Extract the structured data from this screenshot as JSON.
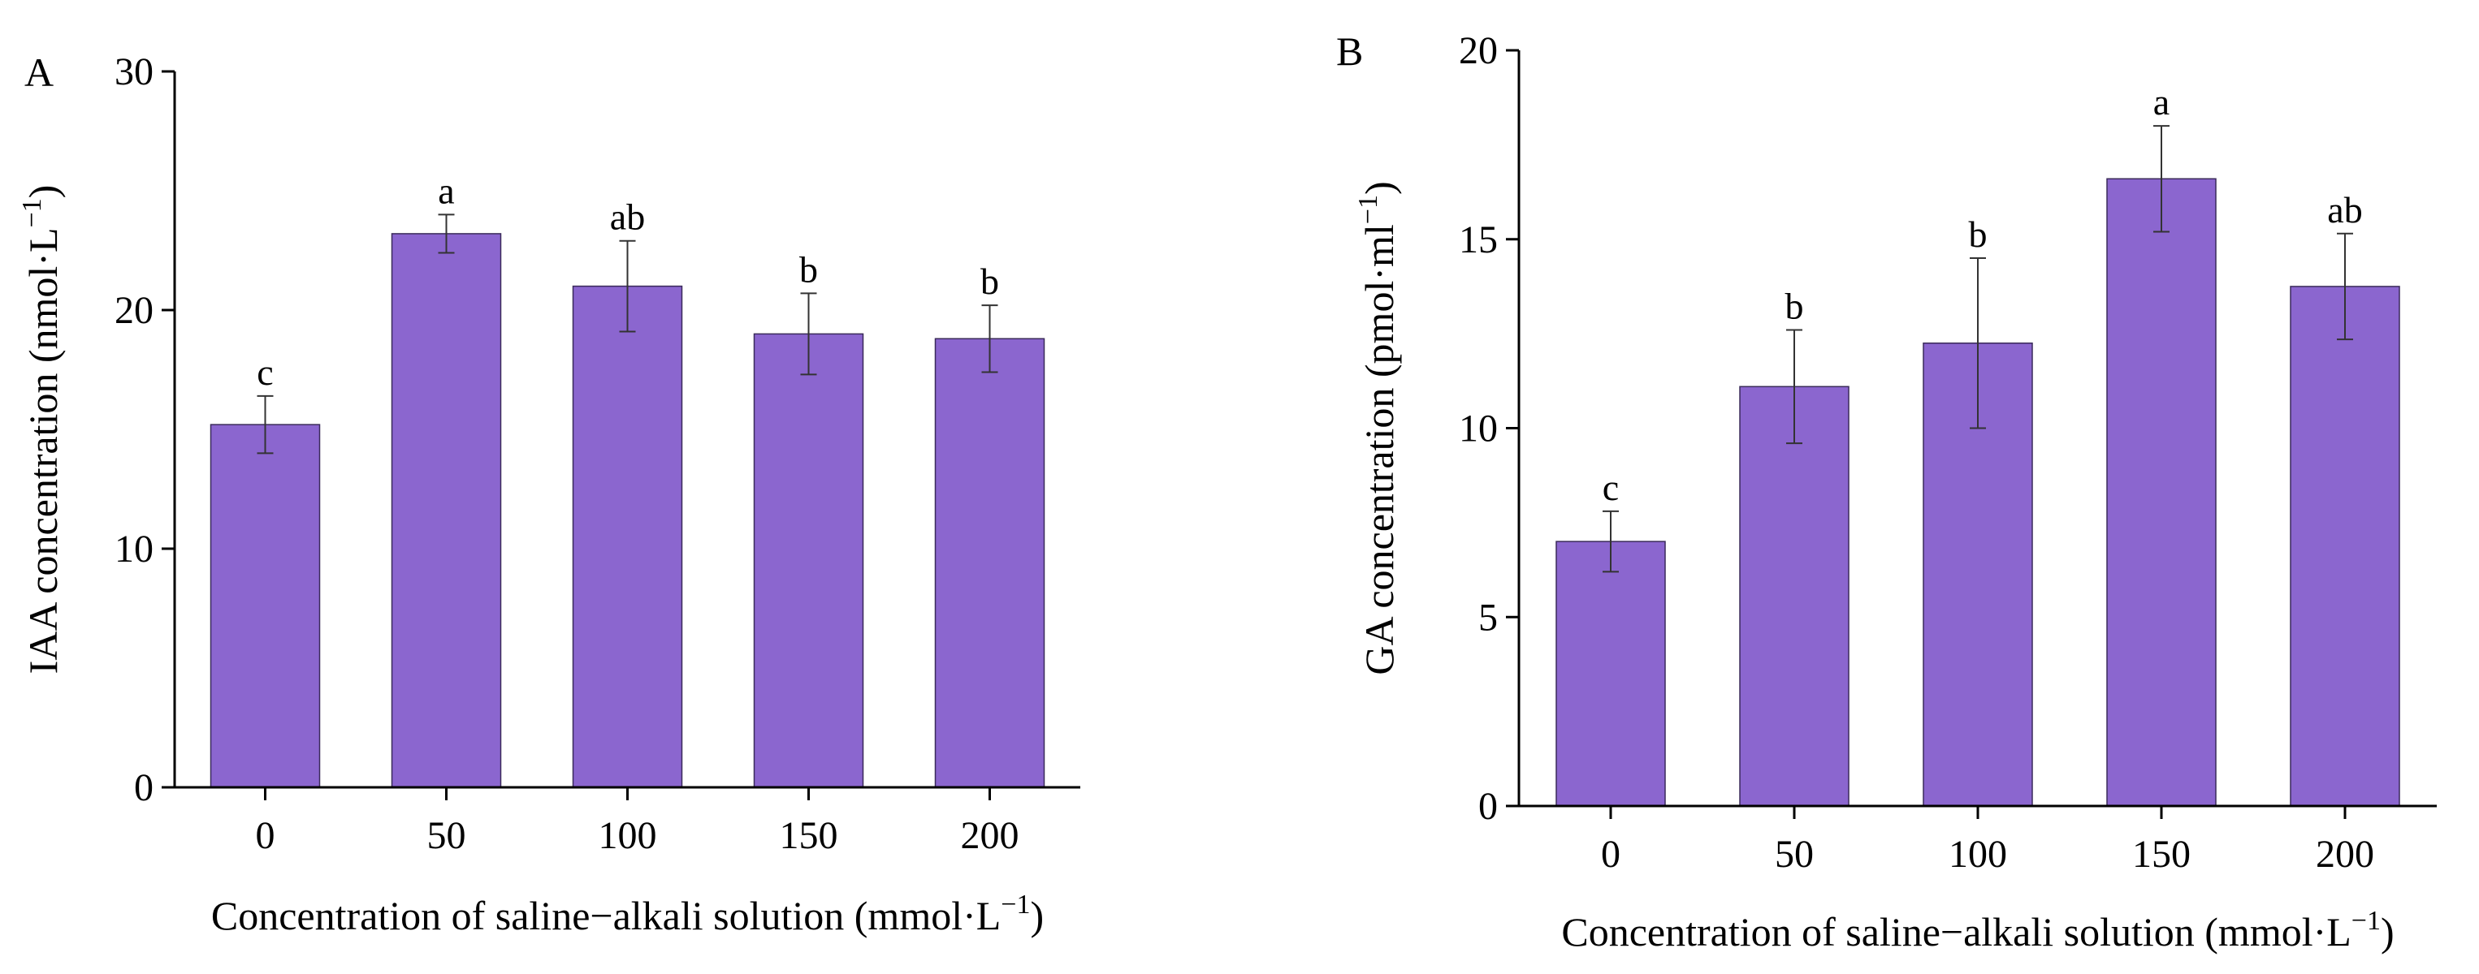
{
  "chart_data": [
    {
      "type": "bar",
      "panel": "A",
      "title": "",
      "categories": [
        "0",
        "50",
        "100",
        "150",
        "200"
      ],
      "values": [
        15.2,
        23.2,
        21.0,
        19.0,
        18.8
      ],
      "errors": [
        1.2,
        0.8,
        1.9,
        1.7,
        1.4
      ],
      "significance": [
        "c",
        "a",
        "ab",
        "b",
        "b"
      ],
      "xlabel": "Concentration of saline−alkali solution (mmol·L",
      "xlabel_sup": "−1",
      "xlabel_end": ")",
      "ylabel": "IAA concentration (nmol·L",
      "ylabel_sup": "−1",
      "ylabel_end": ")",
      "ylim": [
        0,
        30
      ],
      "yticks": [
        "0",
        "10",
        "20",
        "30"
      ],
      "ytick_values": [
        0,
        10,
        20,
        30
      ],
      "grid": false,
      "color": "#8b66cf"
    },
    {
      "type": "bar",
      "panel": "B",
      "title": "",
      "categories": [
        "0",
        "50",
        "100",
        "150",
        "200"
      ],
      "values": [
        7.0,
        11.1,
        12.25,
        16.6,
        13.75
      ],
      "errors": [
        0.8,
        1.5,
        2.25,
        1.4,
        1.4
      ],
      "significance": [
        "c",
        "b",
        "b",
        "a",
        "ab"
      ],
      "xlabel": "Concentration of saline−alkali solution (mmol·L",
      "xlabel_sup": "−1",
      "xlabel_end": ")",
      "ylabel": "GA concentration (pmol·ml",
      "ylabel_sup": "−1",
      "ylabel_end": ")",
      "ylim": [
        0,
        20
      ],
      "yticks": [
        "0",
        "5",
        "10",
        "15",
        "20"
      ],
      "ytick_values": [
        0,
        5,
        10,
        15,
        20
      ],
      "grid": false,
      "color": "#8b66cf"
    }
  ]
}
